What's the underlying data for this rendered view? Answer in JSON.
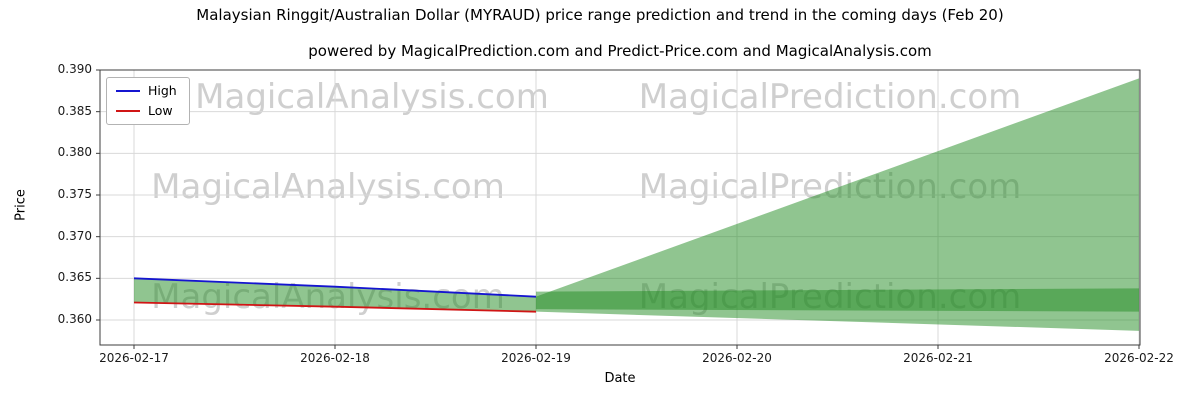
{
  "watermarks": {
    "left": "MagicalAnalysis.com",
    "right": "MagicalPrediction.com"
  },
  "chart_data": {
    "type": "line",
    "title": "Malaysian Ringgit/Australian Dollar (MYRAUD) price range prediction and trend in the coming days (Feb 20)",
    "subtitle": "powered by MagicalPrediction.com and Predict-Price.com and MagicalAnalysis.com",
    "xlabel": "Date",
    "ylabel": "Price",
    "x_categories": [
      "2026-02-17",
      "2026-02-18",
      "2026-02-19",
      "2026-02-20",
      "2026-02-21",
      "2026-02-22"
    ],
    "y_tick_labels": [
      "0.360",
      "0.365",
      "0.370",
      "0.375",
      "0.380",
      "0.385",
      "0.390"
    ],
    "ylim": [
      0.357,
      0.39
    ],
    "grid": true,
    "legend_position": "upper left",
    "series": [
      {
        "name": "High",
        "color": "#1515d0",
        "x_indices": [
          0,
          1,
          2
        ],
        "values": [
          0.365,
          0.364,
          0.3628
        ]
      },
      {
        "name": "Low",
        "color": "#d01515",
        "x_indices": [
          0,
          1,
          2
        ],
        "values": [
          0.3621,
          0.3616,
          0.361
        ]
      }
    ],
    "fills": [
      {
        "name": "history-band",
        "color": "#228B22",
        "alpha": 0.5,
        "x_indices": [
          0,
          1,
          2
        ],
        "upper": [
          0.365,
          0.364,
          0.3628
        ],
        "lower": [
          0.3621,
          0.3616,
          0.361
        ]
      },
      {
        "name": "forecast-fan",
        "color": "#228B22",
        "alpha": 0.5,
        "x_indices": [
          2,
          5
        ],
        "upper": [
          0.3628,
          0.389
        ],
        "lower": [
          0.361,
          0.3587
        ]
      },
      {
        "name": "forecast-band",
        "color": "#228B22",
        "alpha": 0.5,
        "x_indices": [
          2,
          5
        ],
        "upper": [
          0.3634,
          0.3638
        ],
        "lower": [
          0.3613,
          0.361
        ]
      }
    ]
  }
}
